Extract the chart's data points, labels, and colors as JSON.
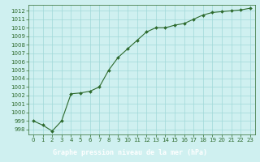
{
  "x": [
    0,
    1,
    2,
    3,
    4,
    5,
    6,
    7,
    8,
    9,
    10,
    11,
    12,
    13,
    14,
    15,
    16,
    17,
    18,
    19,
    20,
    21,
    22,
    23
  ],
  "y": [
    999.0,
    998.5,
    997.8,
    999.0,
    1002.2,
    1002.3,
    1002.5,
    1003.0,
    1005.0,
    1006.5,
    1007.5,
    1008.5,
    1009.5,
    1010.0,
    1010.0,
    1010.3,
    1010.5,
    1011.0,
    1011.5,
    1011.8,
    1011.9,
    1012.0,
    1012.1,
    1012.3
  ],
  "line_color": "#2d6a2d",
  "marker": "D",
  "marker_size": 2,
  "bg_color": "#cff0f0",
  "grid_color": "#a0d8d8",
  "xlabel": "Graphe pression niveau de la mer (hPa)",
  "xlabel_color": "white",
  "xlabel_bg": "#2d6a2d",
  "ylabel_ticks": [
    998,
    999,
    1000,
    1001,
    1002,
    1003,
    1004,
    1005,
    1006,
    1007,
    1008,
    1009,
    1010,
    1011,
    1012
  ],
  "ylim": [
    997.4,
    1012.7
  ],
  "xlim": [
    -0.5,
    23.5
  ],
  "xticks": [
    0,
    1,
    2,
    3,
    4,
    5,
    6,
    7,
    8,
    9,
    10,
    11,
    12,
    13,
    14,
    15,
    16,
    17,
    18,
    19,
    20,
    21,
    22,
    23
  ],
  "tick_fontsize": 5,
  "label_fontsize": 6
}
